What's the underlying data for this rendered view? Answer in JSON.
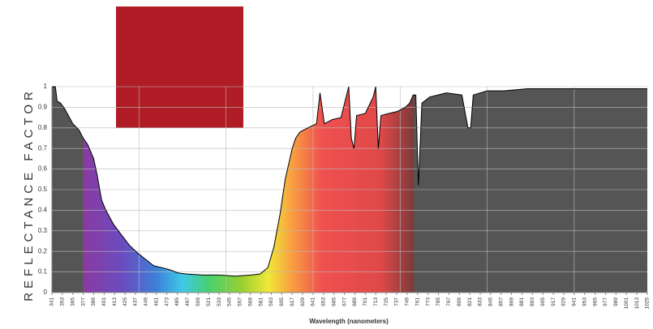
{
  "chart_data": {
    "type": "area",
    "y_label": "REFLECTANCE FACTOR",
    "x_label": "Wavelength (nanometers)",
    "x": [
      341,
      345,
      347,
      351,
      356,
      365,
      372,
      377,
      382,
      389,
      393,
      398,
      403,
      412,
      421,
      430,
      440,
      449,
      458,
      468,
      477,
      486,
      496,
      514,
      533,
      552,
      570,
      580,
      589,
      596,
      603,
      609,
      617,
      621,
      626,
      635,
      645,
      649,
      654,
      663,
      673,
      682,
      685,
      688,
      691,
      701,
      710,
      713,
      716,
      719,
      728,
      738,
      747,
      752,
      756,
      759,
      762,
      766,
      775,
      794,
      812,
      819,
      822,
      825,
      841,
      860,
      887,
      934,
      980,
      1025
    ],
    "values": [
      1.0,
      1.0,
      0.93,
      0.92,
      0.89,
      0.82,
      0.79,
      0.75,
      0.72,
      0.65,
      0.57,
      0.45,
      0.4,
      0.33,
      0.28,
      0.23,
      0.19,
      0.16,
      0.13,
      0.12,
      0.11,
      0.095,
      0.09,
      0.085,
      0.085,
      0.08,
      0.085,
      0.09,
      0.12,
      0.22,
      0.38,
      0.55,
      0.7,
      0.75,
      0.78,
      0.8,
      0.82,
      0.97,
      0.82,
      0.84,
      0.85,
      1.0,
      0.75,
      0.7,
      0.86,
      0.87,
      0.95,
      1.0,
      0.7,
      0.86,
      0.87,
      0.88,
      0.9,
      0.92,
      0.96,
      0.96,
      0.52,
      0.92,
      0.95,
      0.97,
      0.96,
      0.8,
      0.8,
      0.96,
      0.98,
      0.98,
      0.99,
      0.99,
      0.99,
      0.99
    ],
    "color": "#555555",
    "xlim": [
      341,
      1025
    ],
    "ylim": [
      0,
      1
    ],
    "yticks": [
      0,
      0.1,
      0.2,
      0.3,
      0.4,
      0.5,
      0.6,
      0.7,
      0.8,
      0.9,
      1
    ],
    "xticks": [
      341,
      353,
      365,
      377,
      389,
      401,
      413,
      425,
      437,
      449,
      461,
      473,
      485,
      497,
      509,
      521,
      533,
      545,
      557,
      569,
      581,
      593,
      605,
      617,
      629,
      641,
      653,
      665,
      677,
      689,
      701,
      713,
      725,
      737,
      749,
      761,
      773,
      785,
      797,
      809,
      821,
      833,
      845,
      857,
      869,
      881,
      893,
      905,
      917,
      929,
      941,
      953,
      965,
      977,
      989,
      1001,
      1013,
      1025
    ],
    "xgrid": [
      441,
      541,
      641,
      741,
      841,
      941
    ],
    "grid": true
  }
}
